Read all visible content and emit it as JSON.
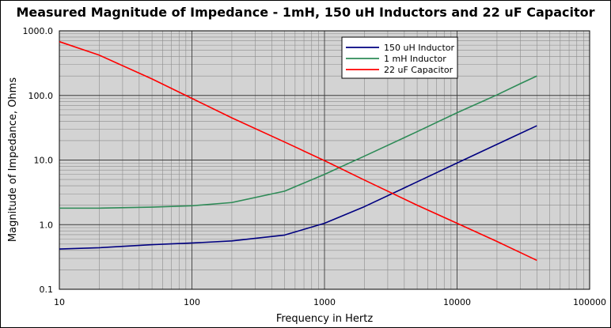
{
  "chart_data": {
    "type": "line",
    "title": "Measured Magnitude of Impedance - 1mH, 150 uH Inductors and 22 uF Capacitor",
    "xlabel": "Frequency in Hertz",
    "ylabel": "Magnitude of Impedance, Ohms",
    "xscale": "log",
    "yscale": "log",
    "xlim": [
      10,
      100000
    ],
    "ylim": [
      0.1,
      1000
    ],
    "xticks": [
      10,
      100,
      1000,
      10000,
      100000
    ],
    "xtick_labels": [
      "10",
      "100",
      "1000",
      "10000",
      "100000"
    ],
    "yticks": [
      0.1,
      1,
      10,
      100,
      1000
    ],
    "ytick_labels": [
      "0.1",
      "1.0",
      "10.0",
      "100.0",
      "1000.0"
    ],
    "grid": true,
    "legend_position": "top-right",
    "plot_background": "#d3d3d3",
    "series": [
      {
        "name": "150 uH Inductor",
        "color": "#000080",
        "x": [
          10,
          20,
          50,
          100,
          200,
          500,
          1000,
          2000,
          5000,
          10000,
          20000,
          40000
        ],
        "y": [
          0.42,
          0.44,
          0.49,
          0.52,
          0.56,
          0.69,
          1.05,
          1.9,
          4.6,
          9.0,
          17.5,
          34
        ]
      },
      {
        "name": "1 mH Inductor",
        "color": "#2e8b57",
        "x": [
          10,
          20,
          50,
          100,
          200,
          500,
          1000,
          2000,
          5000,
          10000,
          20000,
          30000,
          40000
        ],
        "y": [
          1.8,
          1.8,
          1.87,
          1.96,
          2.2,
          3.3,
          6.0,
          11.5,
          27.5,
          54,
          102,
          152,
          200
        ]
      },
      {
        "name": "22 uF Capacitor",
        "color": "#ff0000",
        "x": [
          10,
          20,
          50,
          100,
          200,
          500,
          1000,
          2000,
          5000,
          10000,
          20000,
          40000
        ],
        "y": [
          680,
          420,
          180,
          90,
          45,
          19,
          9.8,
          4.9,
          2.0,
          1.05,
          0.55,
          0.28
        ]
      }
    ]
  }
}
